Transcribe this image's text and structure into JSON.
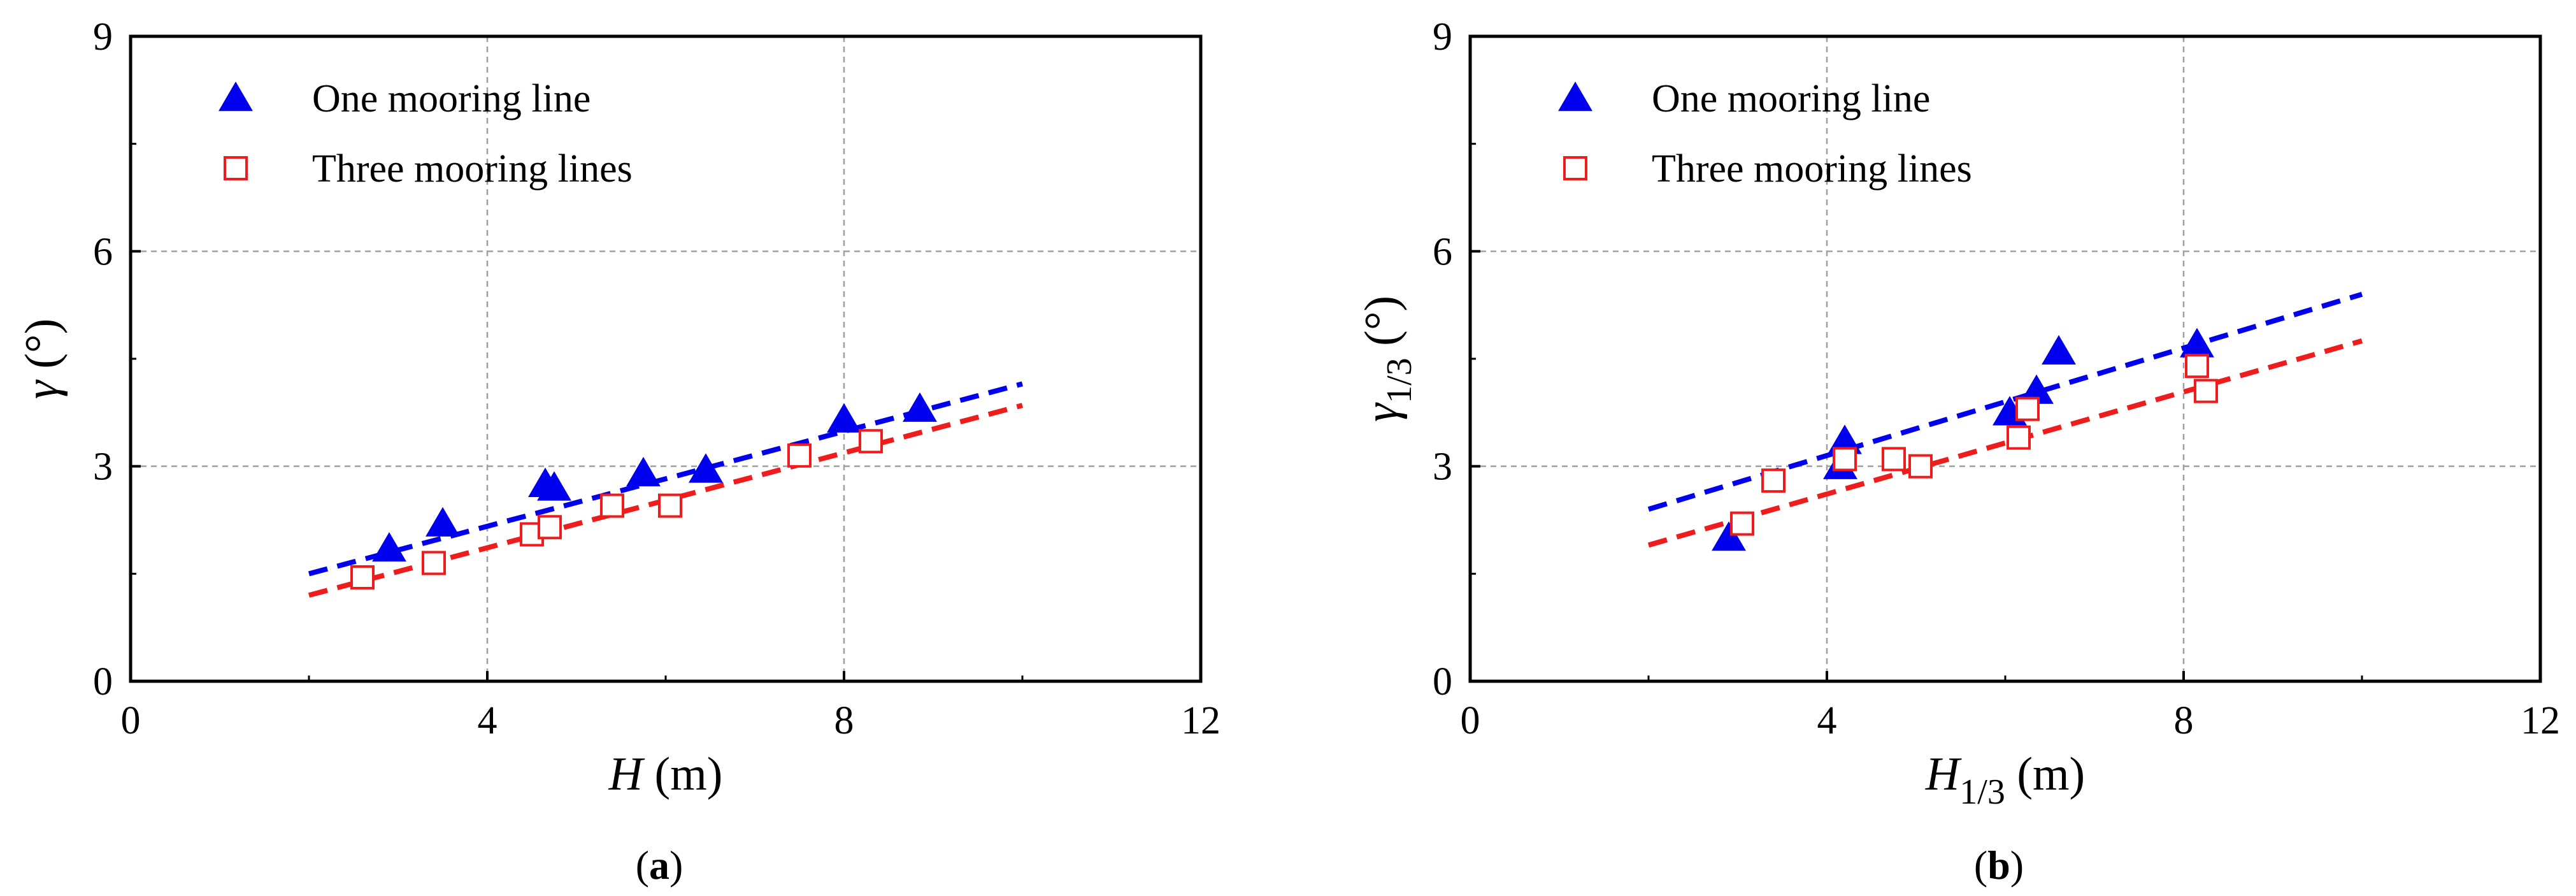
{
  "colors": {
    "one_mooring": "#0000ee",
    "three_mooring": "#ee1c1c",
    "grid": "#a0a0a0",
    "axis": "#000000"
  },
  "chart_data": [
    {
      "type": "scatter",
      "panel_label": {
        "open": "(",
        "letter": "a",
        "close": ")"
      },
      "ylabel": {
        "symbol": "γ",
        "sub": "",
        "unit": " (°)"
      },
      "xlabel": {
        "symbol": "H",
        "sub": "",
        "unit": " (m)"
      },
      "xlim": [
        0,
        12
      ],
      "ylim": [
        0,
        9
      ],
      "xticks": [
        "0",
        "4",
        "8",
        "12"
      ],
      "yticks": [
        "0",
        "3",
        "6",
        "9"
      ],
      "grid": true,
      "legend_position": "top-left",
      "series": [
        {
          "name": "One mooring line",
          "marker": "filled-triangle",
          "color": "#0000ee",
          "x": [
            2.9,
            3.5,
            4.65,
            4.75,
            5.75,
            6.45,
            8.0,
            8.85
          ],
          "y": [
            1.85,
            2.2,
            2.75,
            2.7,
            2.9,
            2.95,
            3.65,
            3.8
          ],
          "trend": {
            "x": [
              2,
              10
            ],
            "y": [
              1.5,
              4.15
            ]
          }
        },
        {
          "name": "Three mooring lines",
          "marker": "open-square",
          "color": "#ee1c1c",
          "x": [
            2.6,
            3.4,
            4.5,
            4.7,
            5.4,
            6.05,
            7.5,
            8.3
          ],
          "y": [
            1.45,
            1.65,
            2.05,
            2.15,
            2.45,
            2.45,
            3.15,
            3.35
          ],
          "trend": {
            "x": [
              2,
              10
            ],
            "y": [
              1.2,
              3.85
            ]
          }
        }
      ]
    },
    {
      "type": "scatter",
      "panel_label": {
        "open": "(",
        "letter": "b",
        "close": ")"
      },
      "ylabel": {
        "symbol": "γ",
        "sub": "1/3",
        "unit": " (°)"
      },
      "xlabel": {
        "symbol": "H",
        "sub": "1/3",
        "unit": " (m)"
      },
      "xlim": [
        0,
        12
      ],
      "ylim": [
        0,
        9
      ],
      "xticks": [
        "0",
        "4",
        "8",
        "12"
      ],
      "yticks": [
        "0",
        "3",
        "6",
        "9"
      ],
      "grid": true,
      "legend_position": "top-left",
      "series": [
        {
          "name": "One mooring line",
          "marker": "filled-triangle",
          "color": "#0000ee",
          "x": [
            2.9,
            4.15,
            4.2,
            6.05,
            6.35,
            6.6,
            8.15
          ],
          "y": [
            2.0,
            3.0,
            3.35,
            3.75,
            4.05,
            4.6,
            4.7
          ],
          "trend": {
            "x": [
              2,
              10
            ],
            "y": [
              2.4,
              5.4
            ]
          }
        },
        {
          "name": "Three mooring lines",
          "marker": "open-square",
          "color": "#ee1c1c",
          "x": [
            3.05,
            3.4,
            4.2,
            4.75,
            5.05,
            6.15,
            6.25,
            8.15,
            8.25
          ],
          "y": [
            2.2,
            2.8,
            3.1,
            3.1,
            3.0,
            3.4,
            3.8,
            4.4,
            4.05
          ],
          "trend": {
            "x": [
              2,
              10
            ],
            "y": [
              1.9,
              4.75
            ]
          }
        }
      ]
    }
  ]
}
